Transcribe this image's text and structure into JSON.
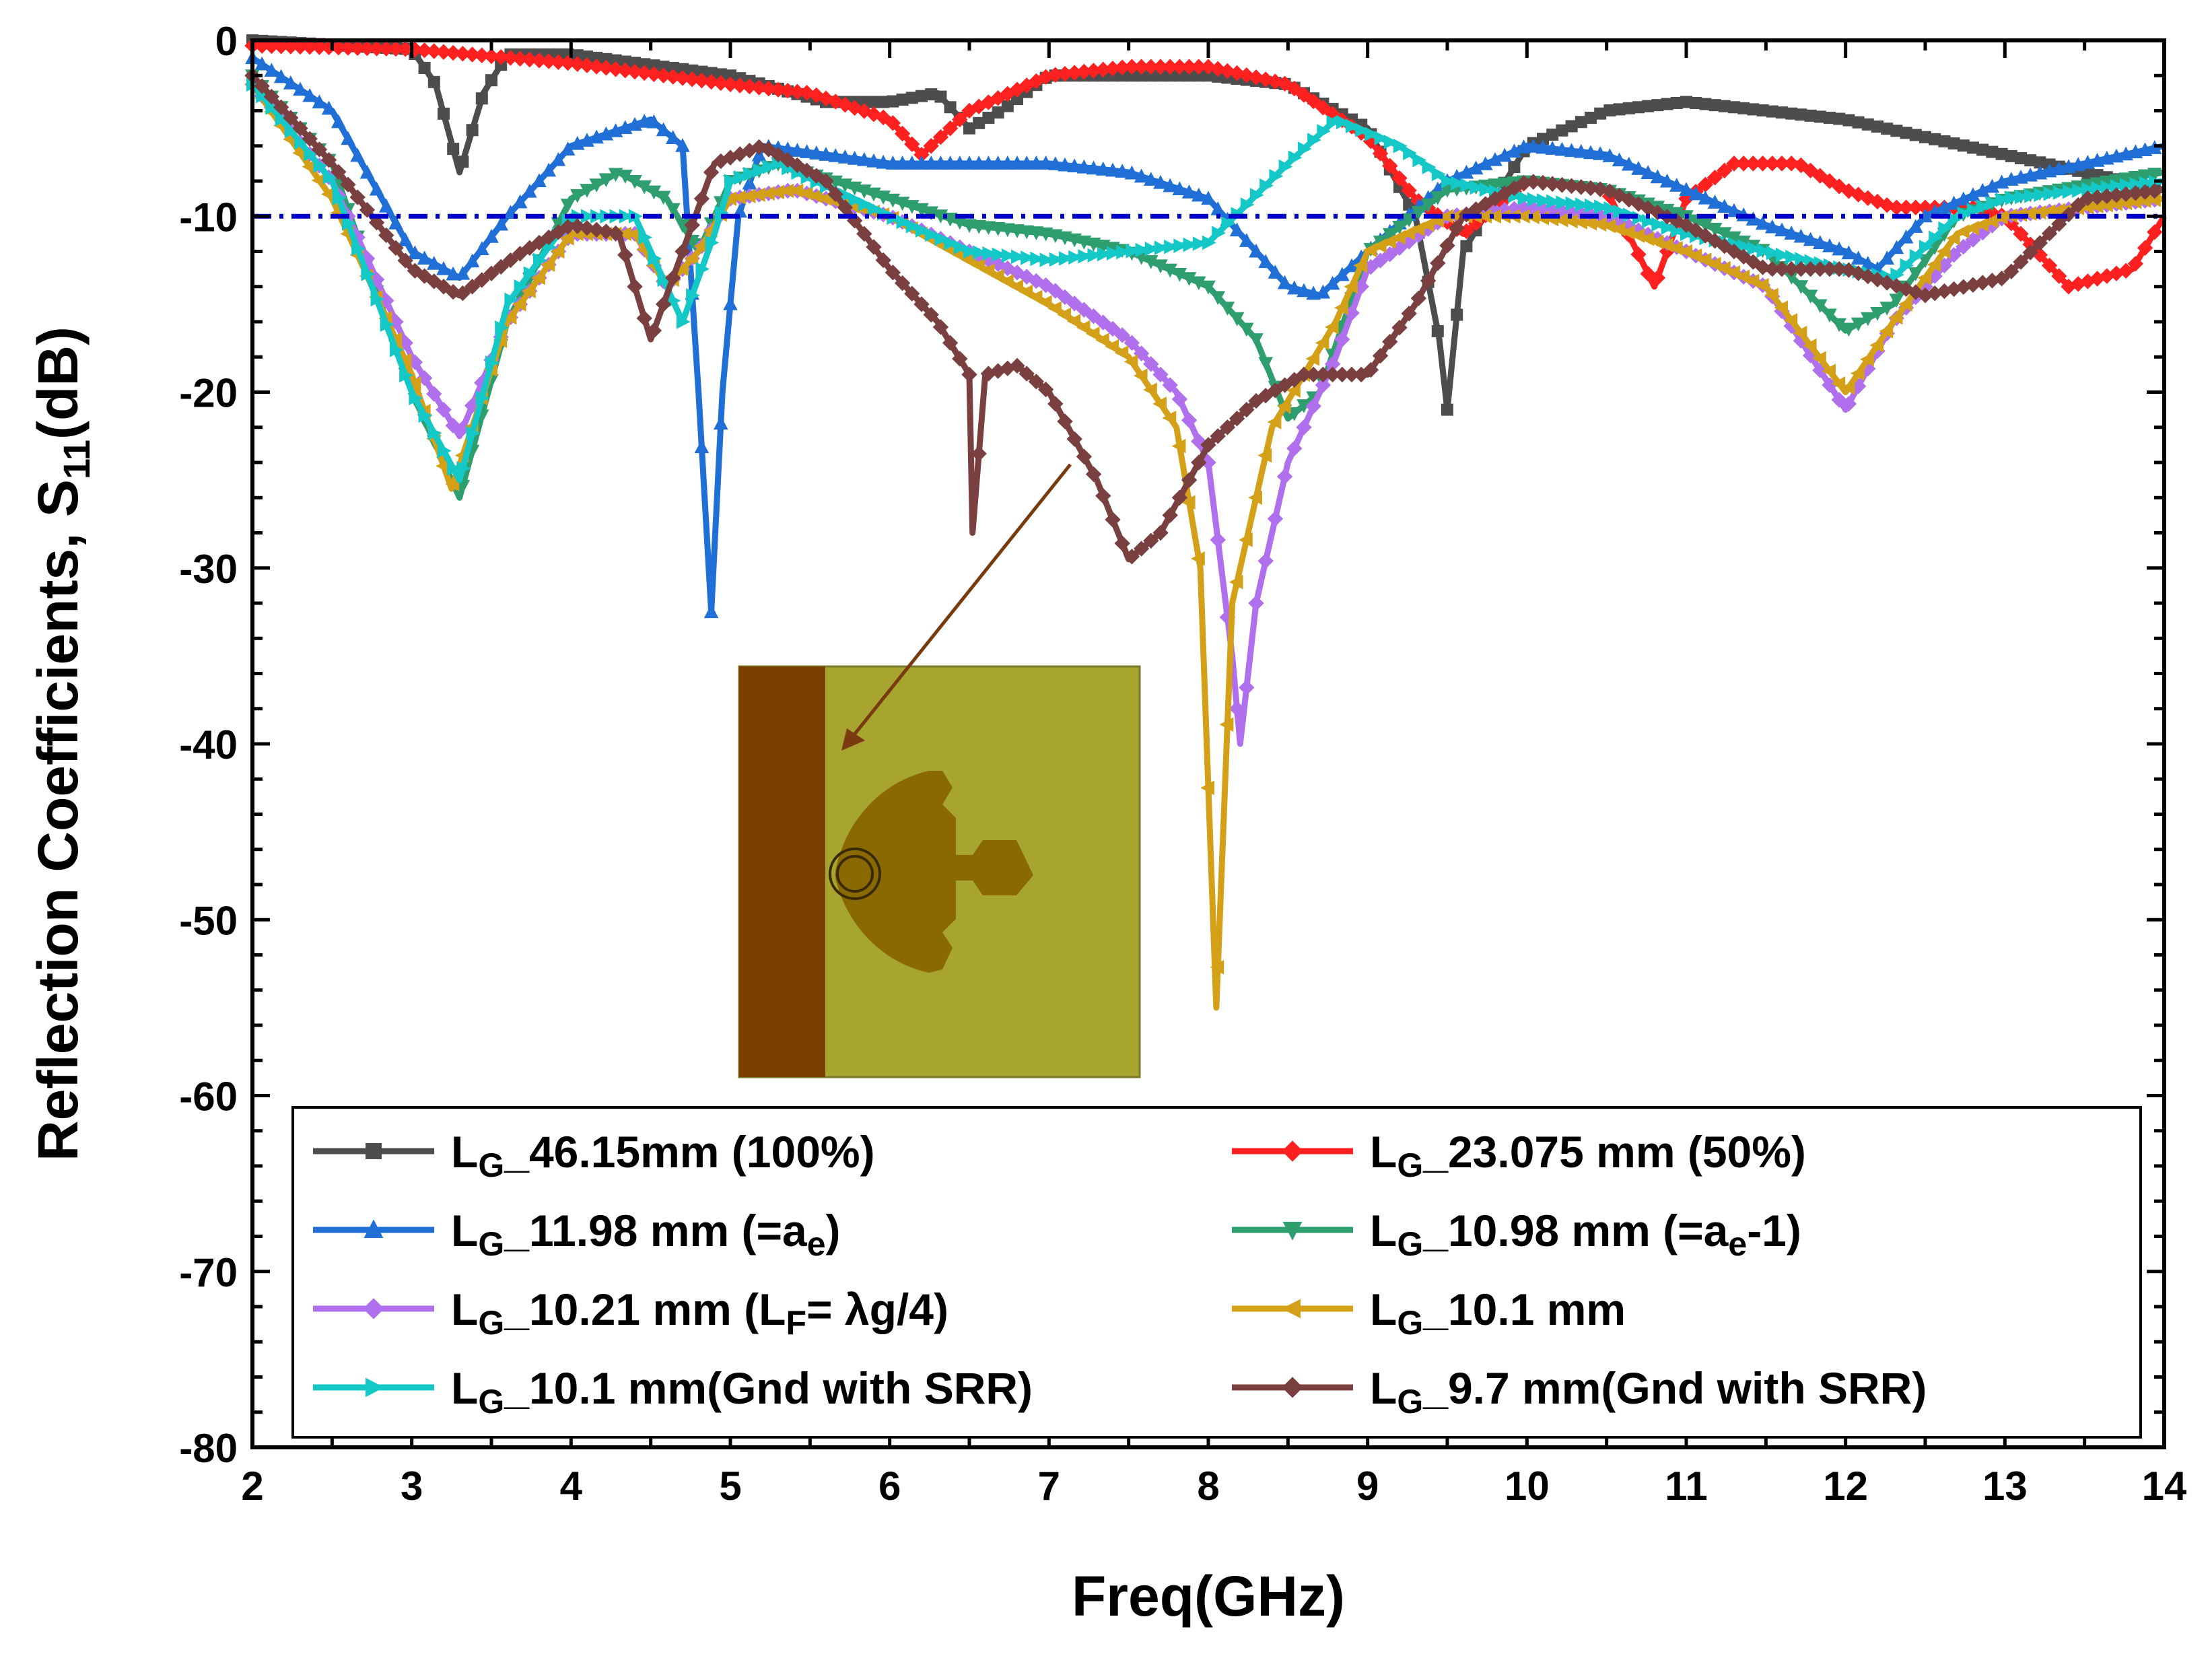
{
  "chart_data": {
    "type": "line",
    "title": "",
    "xlabel": "Freq(GHz)",
    "ylabel_main": "Reflection Coefficients, S",
    "ylabel_sub": "11",
    "ylabel_tail": "(dB)",
    "xlim": [
      2,
      14
    ],
    "ylim": [
      -80,
      0
    ],
    "xticks": [
      "2",
      "3",
      "4",
      "5",
      "6",
      "7",
      "8",
      "9",
      "10",
      "11",
      "12",
      "13",
      "14"
    ],
    "yticks": [
      "0",
      "-10",
      "-20",
      "-30",
      "-40",
      "-50",
      "-60",
      "-70",
      "-80"
    ],
    "reference_line_db": -10,
    "legend_position": "bottom-center",
    "inset": "antenna layout with ground strip (left), patch with SRR and feed",
    "series": [
      {
        "name": "L_G_46.15mm (100%)",
        "legend_main": "L",
        "legend_sub": "G",
        "legend_rest": "_46.15mm (100%)",
        "color": "#4d4d4d",
        "marker": "square",
        "points": [
          [
            2,
            0
          ],
          [
            3,
            -0.5
          ],
          [
            3.15,
            -2.5
          ],
          [
            3.3,
            -7.5
          ],
          [
            3.45,
            -3
          ],
          [
            3.6,
            -0.8
          ],
          [
            4,
            -0.8
          ],
          [
            5,
            -2
          ],
          [
            5.6,
            -3.5
          ],
          [
            6,
            -3.5
          ],
          [
            6.3,
            -3
          ],
          [
            6.5,
            -5
          ],
          [
            6.7,
            -4
          ],
          [
            7,
            -2
          ],
          [
            8,
            -2
          ],
          [
            8.5,
            -2.5
          ],
          [
            9,
            -5
          ],
          [
            9.3,
            -10
          ],
          [
            9.45,
            -17
          ],
          [
            9.5,
            -21
          ],
          [
            9.6,
            -12
          ],
          [
            10,
            -6
          ],
          [
            10.5,
            -4
          ],
          [
            11,
            -3.5
          ],
          [
            12,
            -4.5
          ],
          [
            13,
            -6.5
          ],
          [
            14,
            -8.5
          ]
        ]
      },
      {
        "name": "L_G_23.075 mm (50%)",
        "legend_main": "L",
        "legend_sub": "G",
        "legend_rest": "_23.075 mm (50%)",
        "color": "#ff2020",
        "marker": "diamond",
        "points": [
          [
            2,
            -0.3
          ],
          [
            3,
            -0.5
          ],
          [
            4,
            -1.3
          ],
          [
            5,
            -2.5
          ],
          [
            5.5,
            -3
          ],
          [
            6,
            -4.5
          ],
          [
            6.2,
            -6.5
          ],
          [
            6.5,
            -4
          ],
          [
            7,
            -2
          ],
          [
            7.5,
            -1.5
          ],
          [
            8,
            -1.5
          ],
          [
            8.5,
            -2.5
          ],
          [
            9,
            -5.5
          ],
          [
            9.3,
            -9
          ],
          [
            9.6,
            -11
          ],
          [
            10,
            -8
          ],
          [
            10.5,
            -8.5
          ],
          [
            10.8,
            -14
          ],
          [
            11,
            -9
          ],
          [
            11.3,
            -7
          ],
          [
            11.7,
            -7
          ],
          [
            12,
            -8.5
          ],
          [
            12.3,
            -9.5
          ],
          [
            12.8,
            -9.5
          ],
          [
            13,
            -10
          ],
          [
            13.4,
            -14
          ],
          [
            13.8,
            -13
          ],
          [
            14,
            -10
          ]
        ]
      },
      {
        "name": "L_G_11.98 mm (=a_e)",
        "legend_main": "L",
        "legend_sub": "G",
        "legend_rest": "_11.98 mm (=a",
        "legend_sub2": "e",
        "legend_tail": ")",
        "color": "#1f6fd6",
        "marker": "triangle-up",
        "points": [
          [
            2,
            -1
          ],
          [
            2.5,
            -4
          ],
          [
            3,
            -12
          ],
          [
            3.3,
            -13.5
          ],
          [
            3.6,
            -10
          ],
          [
            4,
            -6
          ],
          [
            4.5,
            -4.5
          ],
          [
            4.7,
            -6
          ],
          [
            4.8,
            -20
          ],
          [
            4.88,
            -32.5
          ],
          [
            4.95,
            -20
          ],
          [
            5.05,
            -10
          ],
          [
            5.2,
            -6
          ],
          [
            6,
            -7
          ],
          [
            7,
            -7
          ],
          [
            7.5,
            -7.5
          ],
          [
            8,
            -9
          ],
          [
            8.5,
            -14
          ],
          [
            8.7,
            -14.5
          ],
          [
            9,
            -12
          ],
          [
            9.5,
            -8
          ],
          [
            10,
            -6
          ],
          [
            10.5,
            -6.5
          ],
          [
            11,
            -8.5
          ],
          [
            11.5,
            -10.5
          ],
          [
            12,
            -12
          ],
          [
            12.2,
            -13
          ],
          [
            12.5,
            -10
          ],
          [
            13,
            -8
          ],
          [
            14,
            -6
          ]
        ]
      },
      {
        "name": "L_G_10.98 mm (=a_e-1)",
        "legend_main": "L",
        "legend_sub": "G",
        "legend_rest": "_10.98 mm (=a",
        "legend_sub2": "e",
        "legend_tail": "-1)",
        "color": "#2e9e6e",
        "marker": "triangle-down",
        "points": [
          [
            2,
            -2
          ],
          [
            2.5,
            -7
          ],
          [
            3,
            -20
          ],
          [
            3.3,
            -26
          ],
          [
            3.6,
            -16
          ],
          [
            4,
            -9
          ],
          [
            4.3,
            -7.5
          ],
          [
            4.6,
            -9
          ],
          [
            4.8,
            -12
          ],
          [
            5,
            -8
          ],
          [
            5.3,
            -7
          ],
          [
            6,
            -9
          ],
          [
            6.5,
            -10.5
          ],
          [
            7,
            -11
          ],
          [
            7.5,
            -12
          ],
          [
            8,
            -14
          ],
          [
            8.3,
            -17
          ],
          [
            8.5,
            -21.5
          ],
          [
            8.7,
            -20
          ],
          [
            9,
            -12
          ],
          [
            9.5,
            -8.5
          ],
          [
            10,
            -8
          ],
          [
            10.5,
            -8.5
          ],
          [
            11,
            -10
          ],
          [
            11.5,
            -12
          ],
          [
            12,
            -16.5
          ],
          [
            12.3,
            -15
          ],
          [
            12.7,
            -10
          ],
          [
            13,
            -9
          ],
          [
            14,
            -7.5
          ]
        ]
      },
      {
        "name": "L_G_10.21 mm (L_F= λg/4)",
        "legend_main": "L",
        "legend_sub": "G",
        "legend_rest": "_10.21 mm (L",
        "legend_sub2": "F",
        "legend_tail": "=  λg/4)",
        "color": "#b070ee",
        "marker": "diamond",
        "points": [
          [
            2,
            -2.5
          ],
          [
            2.5,
            -8
          ],
          [
            3,
            -18
          ],
          [
            3.3,
            -22.5
          ],
          [
            3.6,
            -16
          ],
          [
            4,
            -11
          ],
          [
            4.4,
            -11
          ],
          [
            4.6,
            -14
          ],
          [
            4.8,
            -12
          ],
          [
            5,
            -9
          ],
          [
            5.4,
            -8.5
          ],
          [
            6,
            -10
          ],
          [
            6.5,
            -12
          ],
          [
            7,
            -14
          ],
          [
            7.5,
            -17
          ],
          [
            7.8,
            -20
          ],
          [
            8,
            -24
          ],
          [
            8.15,
            -35
          ],
          [
            8.2,
            -40
          ],
          [
            8.3,
            -32
          ],
          [
            8.5,
            -24
          ],
          [
            8.8,
            -18
          ],
          [
            9,
            -13
          ],
          [
            9.5,
            -10
          ],
          [
            10,
            -9.5
          ],
          [
            10.5,
            -10
          ],
          [
            11,
            -12
          ],
          [
            11.5,
            -14
          ],
          [
            12,
            -21
          ],
          [
            12.3,
            -16
          ],
          [
            12.7,
            -12
          ],
          [
            13,
            -10
          ],
          [
            14,
            -9
          ]
        ]
      },
      {
        "name": "L_G_10.1 mm",
        "legend_main": "L",
        "legend_sub": "G",
        "legend_rest": "_10.1 mm",
        "color": "#d4a017",
        "marker": "triangle-left",
        "points": [
          [
            2,
            -2.5
          ],
          [
            2.5,
            -9
          ],
          [
            3,
            -19
          ],
          [
            3.25,
            -25.5
          ],
          [
            3.6,
            -16
          ],
          [
            4,
            -11
          ],
          [
            4.4,
            -11
          ],
          [
            4.6,
            -14
          ],
          [
            4.8,
            -12
          ],
          [
            5,
            -9
          ],
          [
            5.4,
            -8.5
          ],
          [
            6,
            -10
          ],
          [
            6.5,
            -12.5
          ],
          [
            7,
            -15
          ],
          [
            7.5,
            -18
          ],
          [
            7.8,
            -22
          ],
          [
            7.95,
            -30
          ],
          [
            8.05,
            -55
          ],
          [
            8.15,
            -32
          ],
          [
            8.4,
            -22
          ],
          [
            8.8,
            -16
          ],
          [
            9,
            -12
          ],
          [
            9.5,
            -10
          ],
          [
            10,
            -10
          ],
          [
            10.5,
            -10.5
          ],
          [
            11,
            -12
          ],
          [
            11.5,
            -14
          ],
          [
            12,
            -20
          ],
          [
            12.3,
            -16
          ],
          [
            12.7,
            -11
          ],
          [
            13,
            -10
          ],
          [
            14,
            -9
          ]
        ]
      },
      {
        "name": "L_G_10.1 mm(Gnd with SRR)",
        "legend_main": "L",
        "legend_sub": "G",
        "legend_rest": "_10.1 mm(Gnd with SRR)",
        "color": "#14c8c8",
        "marker": "triangle-right",
        "points": [
          [
            2,
            -2.5
          ],
          [
            2.5,
            -8
          ],
          [
            3,
            -20
          ],
          [
            3.3,
            -25
          ],
          [
            3.6,
            -15
          ],
          [
            4,
            -10
          ],
          [
            4.4,
            -10
          ],
          [
            4.7,
            -16
          ],
          [
            4.9,
            -11
          ],
          [
            5,
            -8
          ],
          [
            5.3,
            -7
          ],
          [
            6,
            -10
          ],
          [
            6.5,
            -12
          ],
          [
            7,
            -12.5
          ],
          [
            7.5,
            -12
          ],
          [
            8,
            -11.5
          ],
          [
            8.5,
            -7
          ],
          [
            8.8,
            -4.5
          ],
          [
            9.2,
            -6
          ],
          [
            9.5,
            -8
          ],
          [
            10,
            -9
          ],
          [
            10.5,
            -9.5
          ],
          [
            11,
            -11
          ],
          [
            11.5,
            -12
          ],
          [
            12,
            -13
          ],
          [
            12.3,
            -13.5
          ],
          [
            12.7,
            -10
          ],
          [
            13,
            -9
          ],
          [
            14,
            -8
          ]
        ]
      },
      {
        "name": "L_G_9.7 mm(Gnd with SRR)",
        "legend_main": "L",
        "legend_sub": "G",
        "legend_rest": "_9.7 mm(Gnd with SRR)",
        "color": "#7a4040",
        "marker": "diamond",
        "points": [
          [
            2,
            -2
          ],
          [
            2.5,
            -7
          ],
          [
            3,
            -13
          ],
          [
            3.3,
            -14.5
          ],
          [
            3.7,
            -12
          ],
          [
            4,
            -10.5
          ],
          [
            4.3,
            -11
          ],
          [
            4.5,
            -17
          ],
          [
            4.7,
            -12
          ],
          [
            4.9,
            -7
          ],
          [
            5.2,
            -6
          ],
          [
            5.6,
            -8
          ],
          [
            6,
            -13
          ],
          [
            6.3,
            -16
          ],
          [
            6.5,
            -19
          ],
          [
            6.52,
            -28
          ],
          [
            6.6,
            -19
          ],
          [
            6.8,
            -18.5
          ],
          [
            7,
            -20
          ],
          [
            7.3,
            -25
          ],
          [
            7.5,
            -29.5
          ],
          [
            7.7,
            -28
          ],
          [
            8,
            -23
          ],
          [
            8.3,
            -20.5
          ],
          [
            8.6,
            -19
          ],
          [
            9,
            -19
          ],
          [
            9.3,
            -15
          ],
          [
            9.6,
            -10
          ],
          [
            10,
            -8
          ],
          [
            10.5,
            -8.5
          ],
          [
            11,
            -10.5
          ],
          [
            11.5,
            -13
          ],
          [
            12,
            -13
          ],
          [
            12.5,
            -14.5
          ],
          [
            13,
            -13.5
          ],
          [
            13.5,
            -9
          ],
          [
            14,
            -8.5
          ]
        ]
      }
    ]
  }
}
